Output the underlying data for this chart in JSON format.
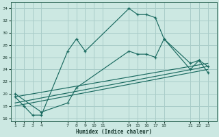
{
  "xlabel": "Humidex (Indice chaleur)",
  "bg_color": "#cce8e2",
  "grid_color": "#a8ccc8",
  "line_color": "#1a6a60",
  "curve1_x": [
    1,
    2,
    3,
    4,
    7,
    8,
    9,
    14,
    15,
    16,
    17,
    18,
    21,
    22,
    23
  ],
  "curve1_y": [
    19.5,
    18.0,
    16.5,
    16.5,
    27.0,
    29.0,
    27.0,
    34.0,
    33.0,
    33.0,
    32.5,
    29.0,
    24.0,
    25.5,
    23.5
  ],
  "curve2_x": [
    1,
    4,
    7,
    8,
    14,
    15,
    16,
    17,
    18,
    21,
    22,
    23
  ],
  "curve2_y": [
    20.0,
    17.0,
    18.5,
    21.0,
    27.0,
    26.5,
    26.5,
    26.0,
    29.0,
    25.0,
    25.5,
    24.5
  ],
  "trend1_x": [
    1,
    23
  ],
  "trend1_y": [
    19.5,
    25.0
  ],
  "trend2_x": [
    1,
    23
  ],
  "trend2_y": [
    18.5,
    24.5
  ],
  "trend3_x": [
    1,
    23
  ],
  "trend3_y": [
    18.0,
    24.0
  ],
  "ylim": [
    15.5,
    35.0
  ],
  "xlim": [
    0.5,
    24.0
  ],
  "xticks": [
    1,
    2,
    3,
    4,
    7,
    8,
    9,
    10,
    11,
    14,
    15,
    16,
    17,
    18,
    21,
    22,
    23
  ],
  "yticks": [
    16,
    18,
    20,
    22,
    24,
    26,
    28,
    30,
    32,
    34
  ]
}
